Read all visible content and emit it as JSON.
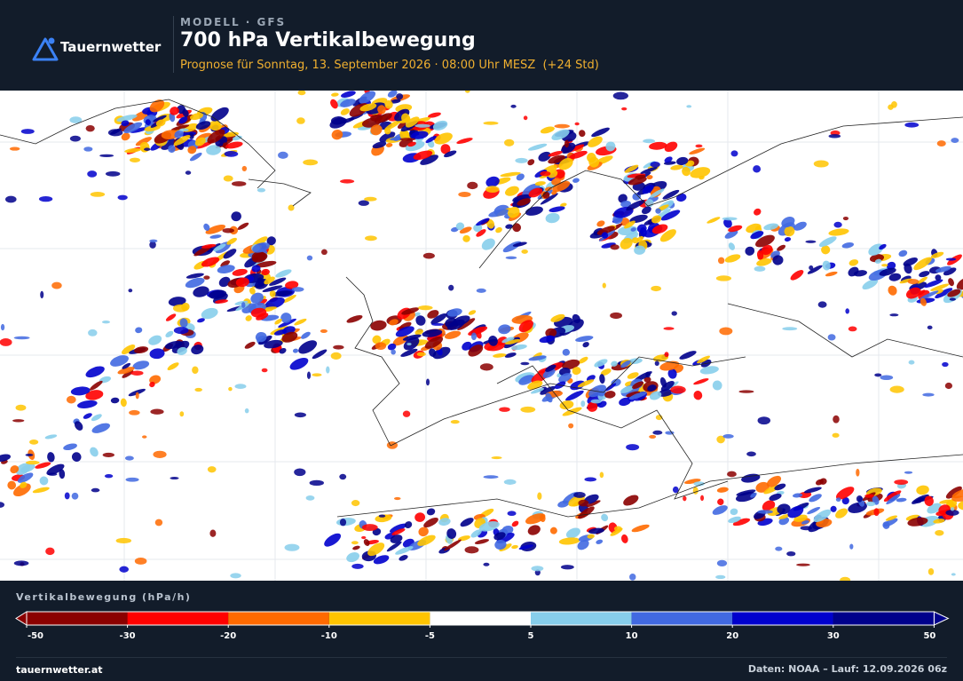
{
  "header": {
    "brand": "Tauernwetter",
    "kicker": "MODELL · GFS",
    "title": "700 hPa Vertikalbewegung",
    "subtitle": "Prognose für Sonntag, 13. September 2026 · 08:00 Uhr MESZ  (+24 Std)"
  },
  "legend": {
    "title": "Vertikalbewegung (hPa/h)",
    "ticks": [
      -50,
      -30,
      -20,
      -10,
      -5,
      5,
      10,
      20,
      30,
      50
    ],
    "colors": [
      "#8b0000",
      "#ff0000",
      "#ff6a00",
      "#ffc400",
      "#ffffff",
      "#87ceeb",
      "#4169e1",
      "#0000cd",
      "#00008b"
    ]
  },
  "footer": {
    "site": "tauernwetter.at",
    "credit": "Daten: NOAA – Lauf: 12.09.2026 06z"
  }
}
